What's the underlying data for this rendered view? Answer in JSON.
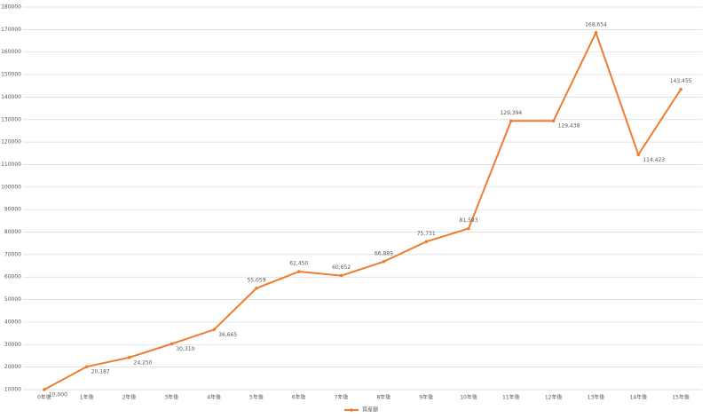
{
  "chart_data": {
    "type": "line",
    "categories": [
      "0年後",
      "1年後",
      "2年後",
      "3年後",
      "4年後",
      "5年後",
      "6年後",
      "7年後",
      "8年後",
      "9年後",
      "10年後",
      "11年後",
      "12年後",
      "13年後",
      "14年後",
      "15年後"
    ],
    "series": [
      {
        "name": "資産額",
        "color": "#ed7d31",
        "values": [
          10000,
          20187,
          24250,
          30310,
          36665,
          55059,
          62450,
          60652,
          66889,
          75731,
          81593,
          129394,
          129438,
          168654,
          114423,
          143455
        ],
        "value_labels": [
          "10,000",
          "20,187",
          "24,250",
          "30,310",
          "36,665",
          "55,059",
          "62,450",
          "60,652",
          "66,889",
          "75,731",
          "81,593",
          "129,394",
          "129,438",
          "168,654",
          "114,423",
          "143,455"
        ]
      }
    ],
    "ylim": [
      10000,
      180000
    ],
    "yticks": [
      10000,
      20000,
      30000,
      40000,
      50000,
      60000,
      70000,
      80000,
      90000,
      100000,
      110000,
      120000,
      130000,
      140000,
      150000,
      160000,
      170000,
      180000
    ],
    "grid": true,
    "legend": "bottom"
  }
}
